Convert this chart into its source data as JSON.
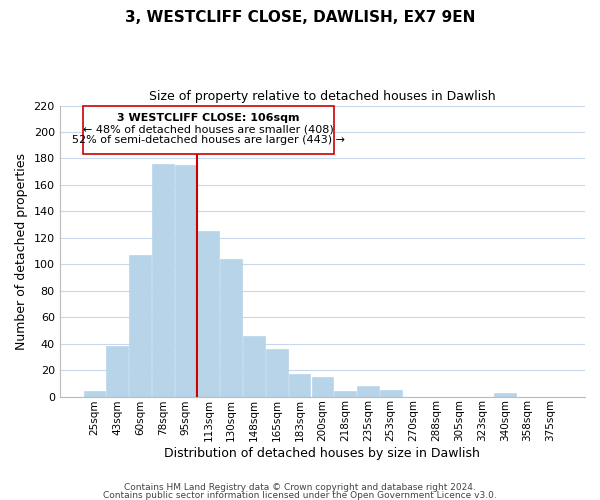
{
  "title": "3, WESTCLIFF CLOSE, DAWLISH, EX7 9EN",
  "subtitle": "Size of property relative to detached houses in Dawlish",
  "xlabel": "Distribution of detached houses by size in Dawlish",
  "ylabel": "Number of detached properties",
  "bar_labels": [
    "25sqm",
    "43sqm",
    "60sqm",
    "78sqm",
    "95sqm",
    "113sqm",
    "130sqm",
    "148sqm",
    "165sqm",
    "183sqm",
    "200sqm",
    "218sqm",
    "235sqm",
    "253sqm",
    "270sqm",
    "288sqm",
    "305sqm",
    "323sqm",
    "340sqm",
    "358sqm",
    "375sqm"
  ],
  "bar_values": [
    4,
    38,
    107,
    176,
    175,
    125,
    104,
    46,
    36,
    17,
    15,
    4,
    8,
    5,
    0,
    0,
    0,
    0,
    3,
    0,
    0
  ],
  "bar_color": "#b8d4e8",
  "bar_edge_color": "#b8d4e8",
  "vline_color": "#cc0000",
  "ylim": [
    0,
    220
  ],
  "yticks": [
    0,
    20,
    40,
    60,
    80,
    100,
    120,
    140,
    160,
    180,
    200,
    220
  ],
  "annotation_title": "3 WESTCLIFF CLOSE: 106sqm",
  "annotation_line1": "← 48% of detached houses are smaller (408)",
  "annotation_line2": "52% of semi-detached houses are larger (443) →",
  "footer_line1": "Contains HM Land Registry data © Crown copyright and database right 2024.",
  "footer_line2": "Contains public sector information licensed under the Open Government Licence v3.0.",
  "background_color": "#ffffff",
  "grid_color": "#c8d8ec"
}
